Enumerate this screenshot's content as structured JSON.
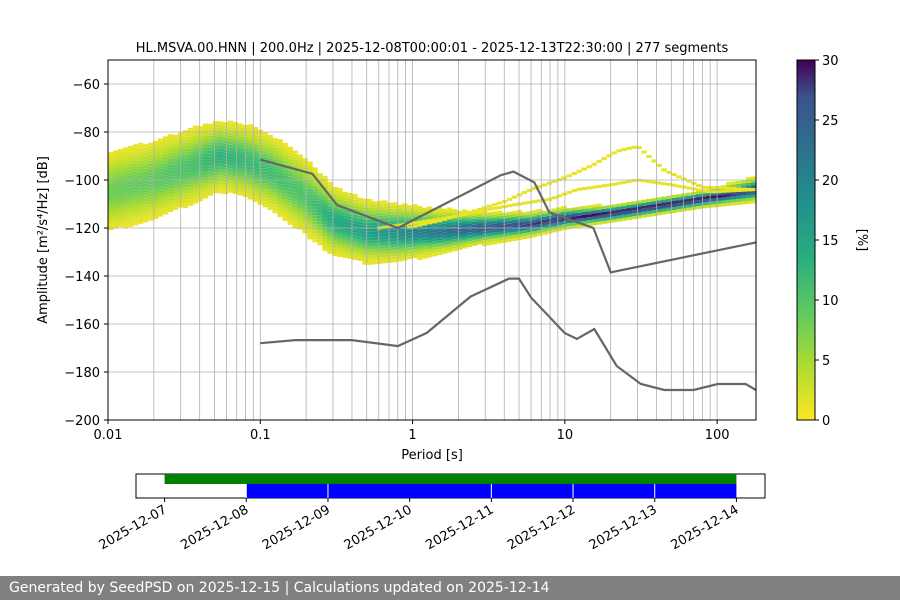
{
  "chart_data": {
    "type": "heatmap",
    "title": "HL.MSVA.00.HNN | 200.0Hz | 2025-12-08T00:00:01 - 2025-12-13T22:30:00 | 277 segments",
    "xlabel": "Period [s]",
    "ylabel": "Amplitude [m²/s⁴/Hz] [dB]",
    "x_scale": "log",
    "xlim": [
      0.01,
      180
    ],
    "ylim": [
      -200,
      -50
    ],
    "x_ticks": [
      "0.01",
      "0.1",
      "1",
      "10",
      "100"
    ],
    "y_ticks": [
      "−60",
      "−80",
      "−100",
      "−120",
      "−140",
      "−160",
      "−180",
      "−200"
    ],
    "grid": true,
    "colorbar": {
      "label": "[%]",
      "range": [
        0,
        30
      ],
      "ticks": [
        "0",
        "5",
        "10",
        "15",
        "20",
        "25",
        "30"
      ],
      "colormap": "viridis_r"
    },
    "noise_model_high": {
      "period": [
        0.1,
        0.22,
        0.32,
        0.8,
        3.8,
        4.6,
        6.3,
        7.9,
        15.4,
        20,
        354.8
      ],
      "db": [
        -91.5,
        -97.4,
        -110.5,
        -120,
        -98,
        -96.5,
        -101,
        -113.5,
        -120,
        -138.5,
        -126
      ]
    },
    "noise_model_low": {
      "period": [
        0.1,
        0.17,
        0.4,
        0.8,
        1.24,
        2.4,
        4.3,
        5,
        6,
        10,
        12,
        15.6,
        21.9,
        31.6,
        45,
        70,
        101,
        154,
        328
      ],
      "db": [
        -168,
        -166.7,
        -166.7,
        -169.2,
        -163.7,
        -148.6,
        -141.1,
        -141.1,
        -149,
        -163.8,
        -166.2,
        -162.1,
        -177.5,
        -185,
        -187.5,
        -187.5,
        -185,
        -185,
        -187.5
      ]
    },
    "mode_curve": {
      "period": [
        0.01,
        0.02,
        0.04,
        0.055,
        0.08,
        0.12,
        0.2,
        0.3,
        0.5,
        0.8,
        1.5,
        3,
        6,
        10,
        20,
        40,
        80,
        180
      ],
      "db": [
        -105,
        -100,
        -93,
        -90,
        -92,
        -97,
        -107,
        -117,
        -121.5,
        -122,
        -121.5,
        -120,
        -118.5,
        -116,
        -114,
        -111,
        -108,
        -104
      ],
      "percent": [
        8,
        9,
        11,
        13,
        12,
        11,
        10,
        14,
        16,
        18,
        22,
        26,
        28,
        29,
        30,
        30,
        30,
        28
      ]
    },
    "secondary_curves": [
      {
        "period": [
          0.9,
          1.5,
          2.5,
          4,
          6,
          10,
          15,
          22,
          30,
          45,
          80,
          180
        ],
        "db": [
          -120,
          -117,
          -113,
          -109,
          -104,
          -99,
          -94,
          -88,
          -86,
          -96,
          -103,
          -104
        ]
      },
      {
        "period": [
          0.6,
          1,
          2,
          3,
          5,
          8,
          12,
          20,
          30,
          50,
          90,
          180
        ],
        "db": [
          -120,
          -118,
          -115,
          -112.5,
          -110,
          -108,
          -104,
          -102,
          -100,
          -102,
          -105,
          -104
        ]
      }
    ],
    "timeline": {
      "date_labels": [
        "2025-12-07",
        "2025-12-08",
        "2025-12-09",
        "2025-12-10",
        "2025-12-11",
        "2025-12-12",
        "2025-12-13",
        "2025-12-14"
      ],
      "range_days": [
        -0.35,
        7.35
      ],
      "available_days": [
        0,
        7
      ],
      "segments_days": [
        [
          1,
          2
        ],
        [
          2,
          4
        ],
        [
          4,
          5
        ],
        [
          5,
          6
        ],
        [
          6,
          7
        ]
      ],
      "available_color": "#008000",
      "segment_color": "#0000ff"
    }
  },
  "footer": {
    "text": "Generated by SeedPSD on 2025-12-15 | Calculations updated on 2025-12-14"
  }
}
